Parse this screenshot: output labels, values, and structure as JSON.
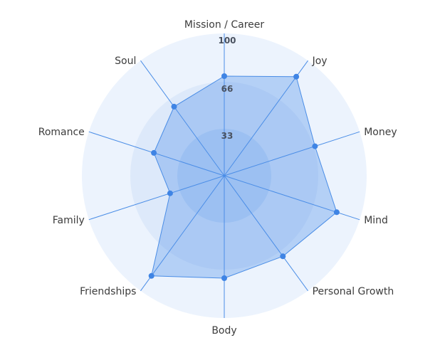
{
  "chart_data": {
    "type": "radar",
    "title": "",
    "axes": [
      "Mission / Career",
      "Joy",
      "Money",
      "Mind",
      "Personal Growth",
      "Body",
      "Friendships",
      "Family",
      "Romance",
      "Soul"
    ],
    "range": [
      0,
      100
    ],
    "ticks": [
      33,
      66,
      100
    ],
    "series": [
      {
        "values": [
          70,
          86,
          67,
          83,
          70,
          72,
          87,
          40,
          52,
          60
        ]
      }
    ],
    "colors": {
      "ring_outer": "#ecf3fd",
      "ring_middle": "#dde9fa",
      "ring_inner": "#c6dbf7",
      "area": "#4e8fe8",
      "line": "#4a8de6",
      "point": "#3f84e4",
      "spoke": "#4a8de6"
    },
    "grid": true
  }
}
